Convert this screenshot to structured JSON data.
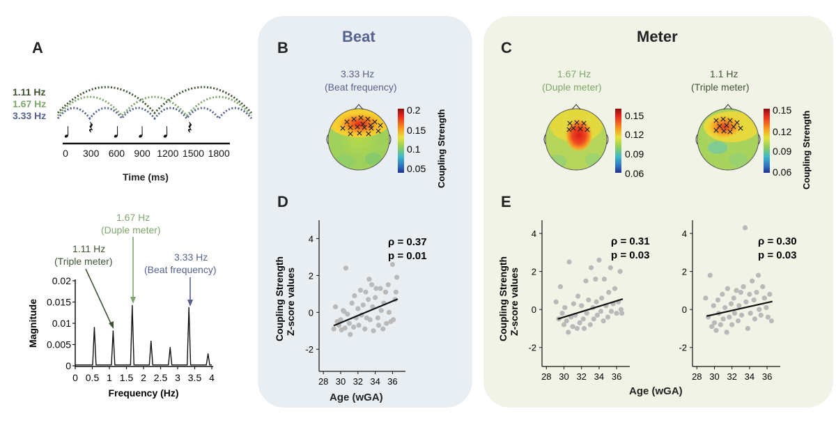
{
  "colors": {
    "beat": "#56618d",
    "duple": "#7ea66a",
    "triple": "#3f5232",
    "black": "#111111",
    "scatter_dot": "#b9b9b9",
    "beat_panel_bg": "#e9eef3",
    "meter_panel_bg": "#f1f3e6"
  },
  "panel_a": {
    "label": "A",
    "rhythm": {
      "freq_labels": [
        {
          "text": "1.11 Hz",
          "color_key": "triple"
        },
        {
          "text": "1.67 Hz",
          "color_key": "duple"
        },
        {
          "text": "3.33 Hz",
          "color_key": "beat"
        }
      ],
      "notes": [
        "note",
        "rest",
        "note",
        "note",
        "note",
        "rest"
      ],
      "note_glyph": "♩",
      "rest_glyph": "𝄽",
      "time_ticks": [
        "0",
        "300",
        "600",
        "900",
        "1200",
        "1500",
        "1800"
      ],
      "time_axis_label": "Time (ms)"
    }
  },
  "spectrum_annotations": {
    "duple": {
      "freq": "1.67 Hz",
      "desc": "(Duple meter)"
    },
    "triple": {
      "freq": "1.11 Hz",
      "desc": "(Triple meter)"
    },
    "beat": {
      "freq": "3.33 Hz",
      "desc": "(Beat frequency)"
    }
  },
  "panel_b": {
    "label": "B",
    "title": "Beat",
    "topo": {
      "freq": "3.33 Hz",
      "desc": "(Beat frequency)",
      "colorbar_ticks": [
        "0.2",
        "0.15",
        "0.1",
        "0.05"
      ],
      "colorbar_label": "Coupling Strength"
    }
  },
  "panel_c": {
    "label": "C",
    "title": "Meter",
    "topo_duple": {
      "freq": "1.67 Hz",
      "desc": "(Duple meter)",
      "colorbar_ticks": [
        "0.15",
        "0.12",
        "0.09",
        "0.06"
      ]
    },
    "topo_triple": {
      "freq": "1.1 Hz",
      "desc": "(Triple meter)",
      "colorbar_ticks": [
        "0.15",
        "0.12",
        "0.09",
        "0.06"
      ],
      "colorbar_label": "Coupling Strength"
    }
  },
  "panel_d": {
    "label": "D",
    "ylabel_line1": "Coupling Strength",
    "ylabel_line2": "Z-score values"
  },
  "panel_e": {
    "label": "E",
    "ylabel_line1": "Coupling Strength",
    "ylabel_line2": "Z-score values",
    "xlabel": "Age (wGA)"
  },
  "chart_data": [
    {
      "id": "spectrum",
      "type": "line",
      "title": "",
      "xlabel": "Frequency (Hz)",
      "ylabel": "Magnitude",
      "xlim": [
        0,
        4
      ],
      "ylim": [
        0,
        0.02
      ],
      "xticks": [
        0,
        0.5,
        1,
        1.5,
        2,
        2.5,
        3,
        3.5,
        4
      ],
      "xtick_labels": [
        "0",
        "0.5",
        "1",
        "1.5",
        "2",
        "2.5",
        "3",
        "3.5",
        "4"
      ],
      "yticks": [
        0,
        0.005,
        0.01,
        0.015,
        0.02
      ],
      "ytick_labels": [
        "0",
        "0.005",
        "0.01",
        "0.015",
        "0.02"
      ],
      "peaks": [
        {
          "x": 0.56,
          "y": 0.009
        },
        {
          "x": 1.11,
          "y": 0.0082
        },
        {
          "x": 1.67,
          "y": 0.0142
        },
        {
          "x": 2.22,
          "y": 0.0058
        },
        {
          "x": 2.78,
          "y": 0.0043
        },
        {
          "x": 3.33,
          "y": 0.0137
        },
        {
          "x": 3.89,
          "y": 0.0028
        }
      ],
      "baseline": 0.0002
    },
    {
      "id": "scatter_d",
      "type": "scatter",
      "xlabel": "Age (wGA)",
      "ylabel": "Coupling Strength Z-score values",
      "xlim": [
        27.5,
        37.5
      ],
      "ylim": [
        -3.2,
        5.0
      ],
      "xticks": [
        28,
        30,
        32,
        34,
        36
      ],
      "xtick_labels": [
        "28",
        "30",
        "32",
        "34",
        "36"
      ],
      "yticks": [
        -2,
        0,
        2,
        4
      ],
      "ytick_labels": [
        "-2",
        "0",
        "2",
        "4"
      ],
      "stats": {
        "rho": "ρ = 0.37",
        "p": "p = 0.01"
      },
      "fit": {
        "x": [
          29.2,
          36.6
        ],
        "y": [
          -0.72,
          0.72
        ]
      },
      "points": [
        [
          29.2,
          -0.9
        ],
        [
          29.4,
          0.3
        ],
        [
          29.6,
          -0.5
        ],
        [
          29.8,
          -0.7
        ],
        [
          30.0,
          -0.4
        ],
        [
          30.1,
          -0.95
        ],
        [
          30.3,
          0.1
        ],
        [
          30.4,
          0.05
        ],
        [
          30.5,
          -0.85
        ],
        [
          30.6,
          2.4
        ],
        [
          30.8,
          -0.1
        ],
        [
          31.0,
          -0.6
        ],
        [
          31.1,
          -1.2
        ],
        [
          31.3,
          0.5
        ],
        [
          31.5,
          -0.8
        ],
        [
          31.6,
          0.9
        ],
        [
          31.8,
          -0.3
        ],
        [
          32.0,
          0.2
        ],
        [
          32.1,
          -0.7
        ],
        [
          32.3,
          1.2
        ],
        [
          32.4,
          -0.15
        ],
        [
          32.6,
          0.4
        ],
        [
          32.8,
          -0.9
        ],
        [
          32.9,
          1.1
        ],
        [
          33.0,
          -0.3
        ],
        [
          33.2,
          0.7
        ],
        [
          33.3,
          1.8
        ],
        [
          33.4,
          -0.4
        ],
        [
          33.6,
          1.5
        ],
        [
          33.7,
          0.3
        ],
        [
          33.8,
          -1.0
        ],
        [
          34.0,
          0.8
        ],
        [
          34.1,
          1.3
        ],
        [
          34.3,
          -0.3
        ],
        [
          34.4,
          -0.7
        ],
        [
          34.6,
          1.3
        ],
        [
          34.7,
          0.1
        ],
        [
          34.9,
          -0.9
        ],
        [
          35.0,
          0.5
        ],
        [
          35.2,
          1.1
        ],
        [
          35.3,
          -0.6
        ],
        [
          35.5,
          1.5
        ],
        [
          35.6,
          0.0
        ],
        [
          35.8,
          -0.5
        ],
        [
          36.0,
          2.6
        ],
        [
          36.1,
          -0.4
        ],
        [
          36.3,
          0.7
        ],
        [
          36.4,
          1.1
        ],
        [
          36.5,
          1.9
        ]
      ]
    },
    {
      "id": "scatter_e_duple",
      "type": "scatter",
      "xlim": [
        27.5,
        37.5
      ],
      "ylim": [
        -3.0,
        4.7
      ],
      "xticks": [
        28,
        30,
        32,
        34,
        36
      ],
      "xtick_labels": [
        "28",
        "30",
        "32",
        "34",
        "36"
      ],
      "yticks": [
        -2,
        0,
        2,
        4
      ],
      "ytick_labels": [
        "-2",
        "0",
        "2",
        "4"
      ],
      "stats": {
        "rho": "ρ = 0.31",
        "p": "p = 0.03"
      },
      "fit": {
        "x": [
          29.3,
          36.7
        ],
        "y": [
          -0.5,
          0.55
        ]
      },
      "points": [
        [
          29.1,
          0.4
        ],
        [
          29.4,
          -0.5
        ],
        [
          29.6,
          1.2
        ],
        [
          29.8,
          -0.2
        ],
        [
          30.0,
          -0.8
        ],
        [
          30.1,
          0.1
        ],
        [
          30.3,
          -0.6
        ],
        [
          30.5,
          -1.2
        ],
        [
          30.6,
          2.5
        ],
        [
          30.8,
          -0.4
        ],
        [
          31.0,
          -0.9
        ],
        [
          31.1,
          0.3
        ],
        [
          31.3,
          -0.3
        ],
        [
          31.5,
          -1.0
        ],
        [
          31.6,
          0.7
        ],
        [
          31.8,
          -0.7
        ],
        [
          32.0,
          0.2
        ],
        [
          32.2,
          -0.5
        ],
        [
          32.3,
          -1.0
        ],
        [
          32.5,
          1.5
        ],
        [
          32.6,
          -0.2
        ],
        [
          32.8,
          0.5
        ],
        [
          33.0,
          -0.8
        ],
        [
          33.1,
          2.2
        ],
        [
          33.3,
          0.1
        ],
        [
          33.4,
          -0.5
        ],
        [
          33.6,
          1.6
        ],
        [
          33.7,
          0.4
        ],
        [
          33.8,
          -0.3
        ],
        [
          34.0,
          2.6
        ],
        [
          34.2,
          -0.1
        ],
        [
          34.3,
          0.6
        ],
        [
          34.5,
          -0.6
        ],
        [
          34.6,
          1.6
        ],
        [
          34.8,
          0.2
        ],
        [
          35.0,
          -0.4
        ],
        [
          35.1,
          0.9
        ],
        [
          35.3,
          2.2
        ],
        [
          35.4,
          -0.1
        ],
        [
          35.6,
          0.3
        ],
        [
          35.8,
          1.1
        ],
        [
          36.0,
          -0.2
        ],
        [
          36.2,
          0.4
        ],
        [
          36.4,
          2.0
        ],
        [
          36.5,
          0.0
        ],
        [
          36.6,
          -0.2
        ]
      ]
    },
    {
      "id": "scatter_e_triple",
      "type": "scatter",
      "xlim": [
        27.5,
        37.5
      ],
      "ylim": [
        -3.0,
        4.7
      ],
      "xticks": [
        28,
        30,
        32,
        34,
        36
      ],
      "xtick_labels": [
        "28",
        "30",
        "32",
        "34",
        "36"
      ],
      "yticks": [
        -2,
        0,
        2,
        4
      ],
      "ytick_labels": [
        "-2",
        "0",
        "2",
        "4"
      ],
      "stats": {
        "rho": "ρ = 0.30",
        "p": "p = 0.03"
      },
      "fit": {
        "x": [
          29.1,
          36.6
        ],
        "y": [
          -0.35,
          0.42
        ]
      },
      "points": [
        [
          29.0,
          0.6
        ],
        [
          29.3,
          -0.4
        ],
        [
          29.5,
          1.8
        ],
        [
          29.7,
          -0.9
        ],
        [
          29.9,
          0.2
        ],
        [
          30.0,
          -0.7
        ],
        [
          30.2,
          -1.1
        ],
        [
          30.4,
          0.5
        ],
        [
          30.5,
          -0.2
        ],
        [
          30.7,
          -0.8
        ],
        [
          30.9,
          0.8
        ],
        [
          31.0,
          -0.5
        ],
        [
          31.2,
          0.1
        ],
        [
          31.4,
          -1.2
        ],
        [
          31.5,
          1.1
        ],
        [
          31.7,
          -0.4
        ],
        [
          31.9,
          0.3
        ],
        [
          32.0,
          -0.8
        ],
        [
          32.2,
          0.6
        ],
        [
          32.3,
          -0.2
        ],
        [
          32.5,
          1.0
        ],
        [
          32.7,
          -0.6
        ],
        [
          32.8,
          0.2
        ],
        [
          33.0,
          0.9
        ],
        [
          33.1,
          -0.3
        ],
        [
          33.3,
          1.2
        ],
        [
          33.5,
          4.3
        ],
        [
          33.6,
          0.4
        ],
        [
          33.8,
          -1.0
        ],
        [
          34.0,
          0.8
        ],
        [
          34.1,
          -0.2
        ],
        [
          34.3,
          1.5
        ],
        [
          34.5,
          0.5
        ],
        [
          34.6,
          -0.5
        ],
        [
          34.8,
          0.9
        ],
        [
          35.0,
          1.8
        ],
        [
          35.1,
          0.0
        ],
        [
          35.3,
          -0.3
        ],
        [
          35.5,
          1.2
        ],
        [
          35.7,
          0.6
        ],
        [
          35.9,
          0.1
        ],
        [
          36.1,
          -0.4
        ],
        [
          36.3,
          0.8
        ],
        [
          36.5,
          -0.6
        ]
      ]
    }
  ]
}
